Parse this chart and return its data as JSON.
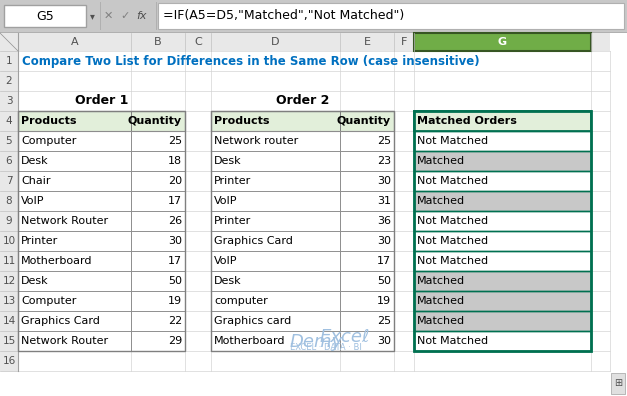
{
  "title": "Compare Two List for Differences in the Same Row (case insensitive)",
  "formula_bar_text": "=IF(A5=D5,\"Matched\",\"Not Matched\")",
  "cell_ref": "G5",
  "col_headers": [
    "A",
    "B",
    "C",
    "D",
    "E",
    "F",
    "G"
  ],
  "order1_header": "Order 1",
  "order2_header": "Order 2",
  "order1_products": [
    "Products",
    "Computer",
    "Desk",
    "Chair",
    "VoIP",
    "Network Router",
    "Printer",
    "Motherboard",
    "Desk",
    "Computer",
    "Graphics Card",
    "Network Router"
  ],
  "order1_qty": [
    "Quantity",
    25,
    18,
    20,
    17,
    26,
    30,
    17,
    50,
    19,
    22,
    29
  ],
  "order2_products": [
    "Products",
    "Network router",
    "Desk",
    "Printer",
    "VoIP",
    "Printer",
    "Graphics Card",
    "VoIP",
    "Desk",
    "computer",
    "Graphics card",
    "Motherboard"
  ],
  "order2_qty": [
    "Quantity",
    25,
    23,
    30,
    31,
    36,
    30,
    17,
    50,
    19,
    25,
    30
  ],
  "matched_orders": [
    "Matched Orders",
    "Not Matched",
    "Matched",
    "Not Matched",
    "Matched",
    "Not Matched",
    "Not Matched",
    "Not Matched",
    "Matched",
    "Matched",
    "Matched",
    "Not Matched"
  ],
  "header_bg": "#E2EFDA",
  "matched_bg": "#C8C8C8",
  "not_matched_bg": "#FFFFFF",
  "title_color": "#0070C0",
  "col_selected_bg": "#70AD47",
  "col_selected_border": "#375623",
  "outer_bg": "#C8C8C8",
  "col_header_bg": "#E8E8E8",
  "row_header_bg": "#E8E8E8",
  "grid_light": "#D4D4D4",
  "cell_border": "#808080",
  "thick_border": "#007050",
  "formula_bg": "#F2F2F2",
  "watermark_color": "#A0C0E0"
}
